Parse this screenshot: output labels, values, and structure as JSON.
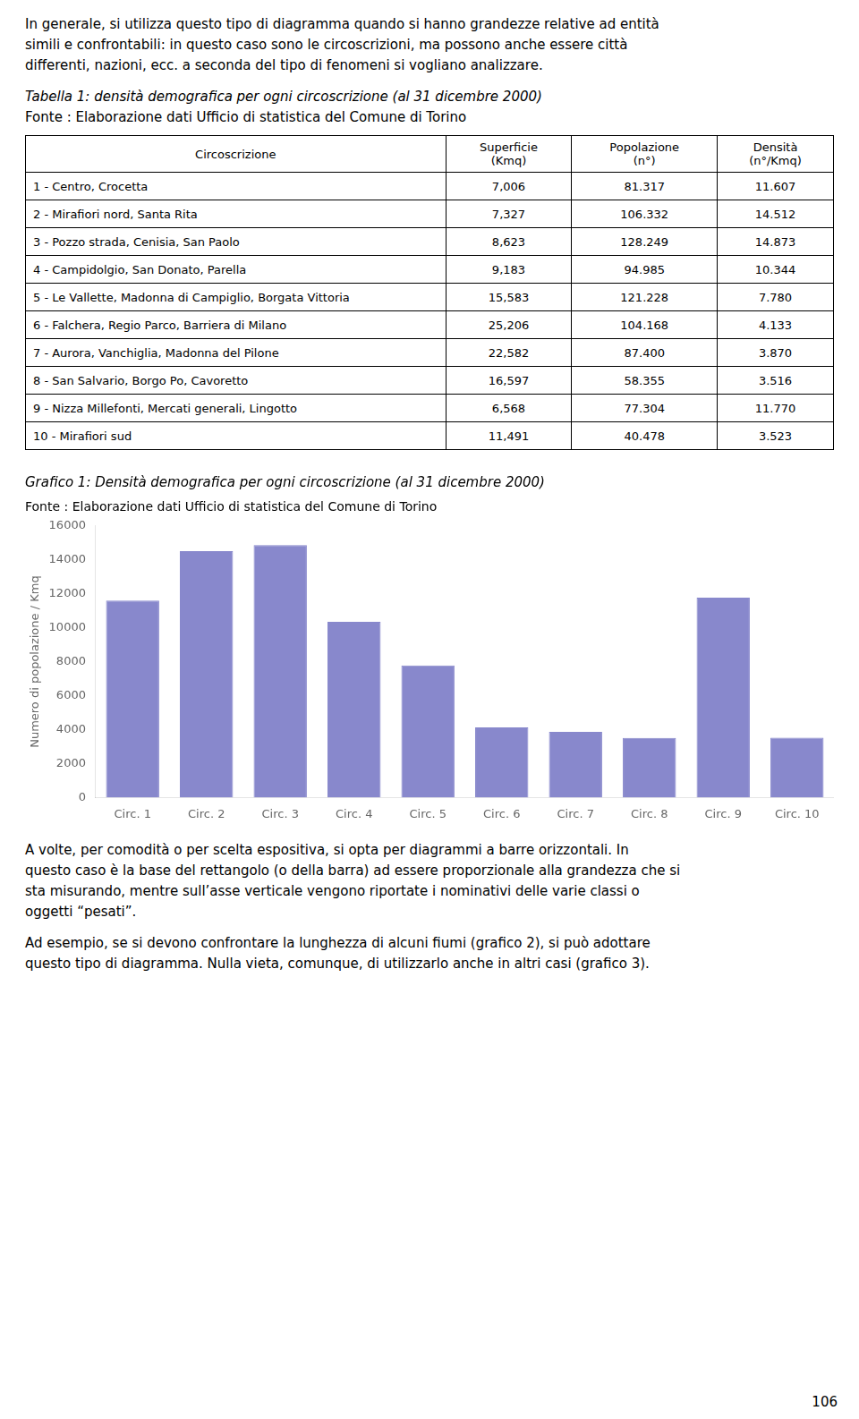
{
  "intro_text": [
    "In generale, si utilizza questo tipo di diagramma quando si hanno grandezze relative ad entità",
    "simili e confrontabili: in questo caso sono le circoscrizioni, ma possono anche essere città",
    "differenti, nazioni, ecc. a seconda del tipo di fenomeni si vogliano analizzare."
  ],
  "table": {
    "title": "Tabella 1: densità demografica per ogni circoscrizione (al 31 dicembre 2000)",
    "source": "Fonte : Elaborazione dati Ufficio di statistica del Comune di Torino",
    "columns": [
      "Circoscrizione",
      "Superficie\n(Kmq)",
      "Popolazione\n(n°)",
      "Densità\n(n°/Kmq)"
    ],
    "rows": [
      [
        "1 - Centro, Crocetta",
        "7,006",
        "81.317",
        "11.607"
      ],
      [
        "2 - Mirafiori nord, Santa Rita",
        "7,327",
        "106.332",
        "14.512"
      ],
      [
        "3 - Pozzo strada, Cenisia, San Paolo",
        "8,623",
        "128.249",
        "14.873"
      ],
      [
        "4 - Campidolgio, San Donato, Parella",
        "9,183",
        "94.985",
        "10.344"
      ],
      [
        "5 - Le Vallette, Madonna di Campiglio, Borgata Vittoria",
        "15,583",
        "121.228",
        "7.780"
      ],
      [
        "6 - Falchera, Regio Parco, Barriera di Milano",
        "25,206",
        "104.168",
        "4.133"
      ],
      [
        "7 - Aurora, Vanchiglia, Madonna del Pilone",
        "22,582",
        "87.400",
        "3.870"
      ],
      [
        "8 - San Salvario, Borgo Po, Cavoretto",
        "16,597",
        "58.355",
        "3.516"
      ],
      [
        "9 - Nizza Millefonti, Mercati generali, Lingotto",
        "6,568",
        "77.304",
        "11.770"
      ],
      [
        "10 - Mirafiori sud",
        "11,491",
        "40.478",
        "3.523"
      ]
    ]
  },
  "chart_data": {
    "type": "bar",
    "title": "Grafico 1: Densità demografica per ogni circoscrizione (al 31 dicembre 2000)",
    "subtitle": "Fonte : Elaborazione dati Ufficio di statistica del Comune di Torino",
    "ylabel": "Numero di popolazione / Kmq",
    "categories": [
      "Circ. 1",
      "Circ. 2",
      "Circ. 3",
      "Circ. 4",
      "Circ. 5",
      "Circ. 6",
      "Circ. 7",
      "Circ. 8",
      "Circ. 9",
      "Circ. 10"
    ],
    "values": [
      11607,
      14512,
      14873,
      10344,
      7780,
      4133,
      3870,
      3516,
      11770,
      3523
    ],
    "color": "#8888cc",
    "ylim": [
      0,
      16000
    ],
    "yticks": [
      0,
      2000,
      4000,
      6000,
      8000,
      10000,
      12000,
      14000,
      16000
    ],
    "grid": false
  },
  "outro_text": [
    [
      "A volte, per comodità o per scelta espositiva, si opta per diagrammi a barre orizzontali. In",
      "questo caso è la base del rettangolo (o della barra) ad essere proporzionale alla grandezza che si",
      "sta misurando, mentre sull’asse verticale vengono riportate i nominativi delle varie classi o",
      "oggetti “pesati”."
    ],
    [
      "Ad esempio, se si devono confrontare la lunghezza di alcuni fiumi (grafico 2), si può adottare",
      "questo tipo di diagramma. Nulla vieta, comunque, di utilizzarlo anche in altri casi (grafico 3)."
    ]
  ],
  "page_number": "106"
}
